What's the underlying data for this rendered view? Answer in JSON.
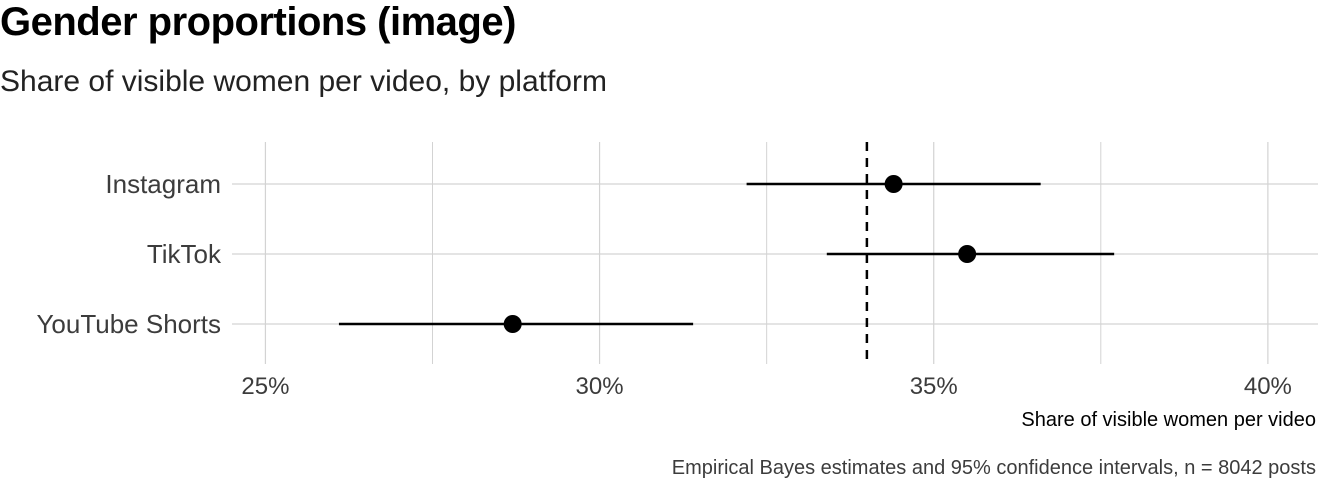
{
  "title": "Gender proportions (image)",
  "subtitle": "Share of visible women per video, by platform",
  "chart_data": {
    "type": "scatter",
    "subtype": "dot-and-whisker",
    "title": "Gender proportions (image)",
    "subtitle": "Share of visible women per video, by platform",
    "xlabel": "Share of visible women per video",
    "ylabel": "",
    "caption": "Empirical Bayes estimates and 95% confidence intervals, n = 8042 posts",
    "categories": [
      "Instagram",
      "TikTok",
      "YouTube Shorts"
    ],
    "points": [
      {
        "category": "Instagram",
        "estimate": 34.4,
        "ci_low": 32.2,
        "ci_high": 36.6
      },
      {
        "category": "TikTok",
        "estimate": 35.5,
        "ci_low": 33.4,
        "ci_high": 37.7
      },
      {
        "category": "YouTube Shorts",
        "estimate": 28.7,
        "ci_low": 26.1,
        "ci_high": 31.4
      }
    ],
    "reference_line": 34.0,
    "xlim": [
      24.5,
      40.75
    ],
    "xticks": [
      25,
      30,
      35,
      40
    ],
    "xtick_labels": [
      "25%",
      "30%",
      "35%",
      "40%"
    ],
    "grid": true,
    "colors": {
      "points": "#000000",
      "grid": "#d3d3d3",
      "text": "#3c3c3c"
    }
  }
}
